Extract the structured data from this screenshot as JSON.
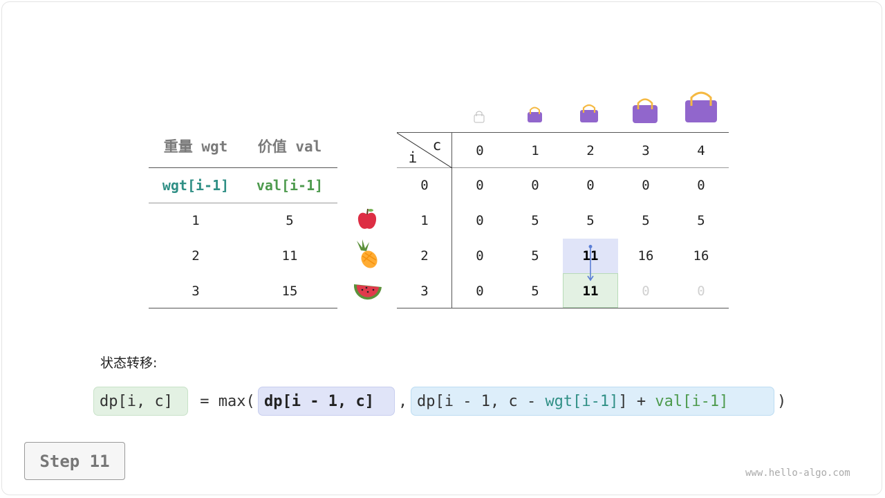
{
  "items_table": {
    "headers": [
      "重量 wgt",
      "价值 val"
    ],
    "subheaders": [
      "wgt[i-1]",
      "val[i-1]"
    ],
    "rows": [
      [
        "1",
        "5"
      ],
      [
        "2",
        "11"
      ],
      [
        "3",
        "15"
      ]
    ],
    "item_icons": [
      "apple-icon",
      "pineapple-icon",
      "watermelon-icon"
    ]
  },
  "dp_table": {
    "corner_col": "c",
    "corner_row": "i",
    "columns": [
      "0",
      "1",
      "2",
      "3",
      "4"
    ],
    "row_labels": [
      "0",
      "1",
      "2",
      "3"
    ],
    "cells": [
      [
        "0",
        "0",
        "0",
        "0",
        "0"
      ],
      [
        "0",
        "5",
        "5",
        "5",
        "5"
      ],
      [
        "0",
        "5",
        "11",
        "16",
        "16"
      ],
      [
        "0",
        "5",
        "11",
        "0",
        "0"
      ]
    ],
    "highlight_source": {
      "row": 2,
      "col": 2,
      "color": "#e0e4f8"
    },
    "highlight_target": {
      "row": 3,
      "col": 2,
      "color": "#e3f1e3"
    },
    "capacity_icons": "bag-icon"
  },
  "transition": {
    "label": "状态转移:",
    "lhs": "dp[i, c]",
    "eq": " = max(",
    "arg1": "dp[i - 1, c]",
    "comma": ",",
    "arg2_a": "dp[i - 1, c - ",
    "arg2_wgt": "wgt[i-1]",
    "arg2_b": "] + ",
    "arg2_val": "val[i-1]",
    "close": ")"
  },
  "step": {
    "label": "Step 11"
  },
  "watermark": "www.hello-algo.com",
  "colors": {
    "wgt": "#2f8f85",
    "val": "#4d9a4d",
    "bag": "#9166cc",
    "handle": "#f5b942"
  }
}
